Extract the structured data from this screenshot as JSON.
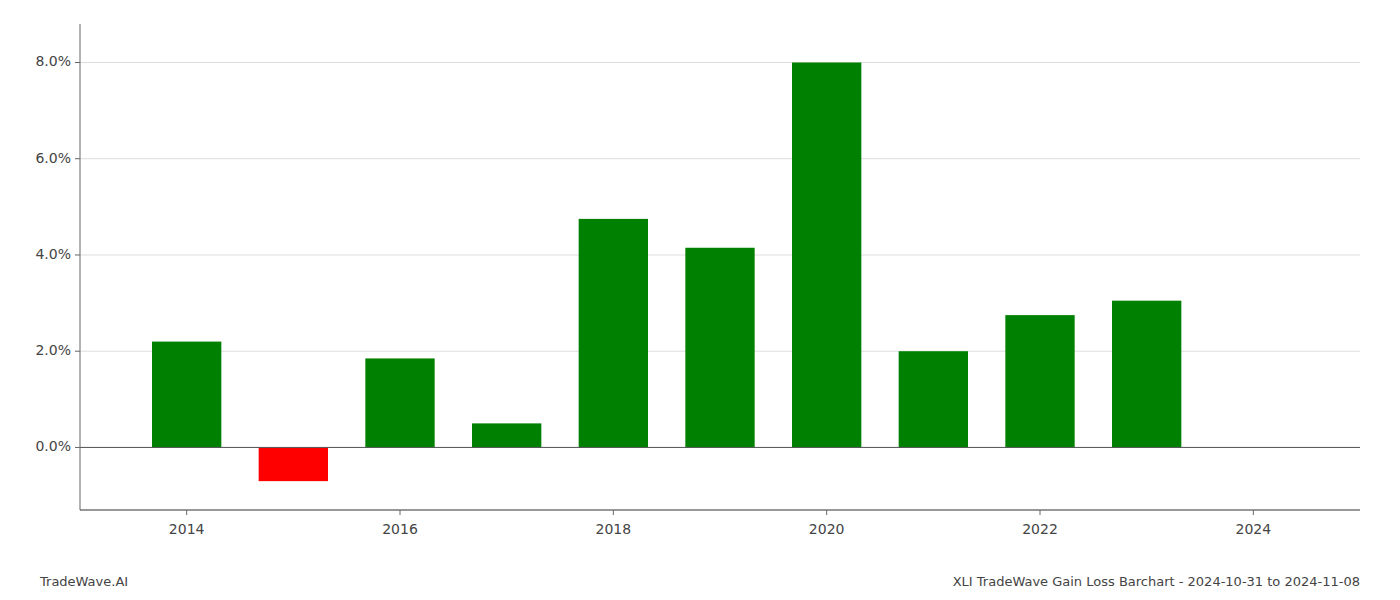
{
  "chart_data": {
    "type": "bar",
    "title": "XLI TradeWave Gain Loss Barchart - 2024-10-31 to 2024-11-08",
    "annotations": [
      "TradeWave.AI"
    ],
    "x": [
      2014,
      2015,
      2016,
      2017,
      2018,
      2019,
      2020,
      2021,
      2022,
      2023
    ],
    "values": [
      0.022,
      -0.007,
      0.0185,
      0.005,
      0.0475,
      0.0415,
      0.08,
      0.02,
      0.0275,
      0.0305
    ],
    "colors": [
      "#008000",
      "#ff0000",
      "#008000",
      "#008000",
      "#008000",
      "#008000",
      "#008000",
      "#008000",
      "#008000",
      "#008000"
    ],
    "xlim": [
      2013.0,
      2025.0
    ],
    "xticks": [
      2014,
      2016,
      2018,
      2020,
      2022,
      2024
    ],
    "ylim": [
      -0.013,
      0.088
    ],
    "yticks": [
      {
        "value": 0.0,
        "label": "0.0%"
      },
      {
        "value": 0.02,
        "label": "2.0%"
      },
      {
        "value": 0.04,
        "label": "4.0%"
      },
      {
        "value": 0.06,
        "label": "6.0%"
      },
      {
        "value": 0.08,
        "label": "8.0%"
      }
    ],
    "grid": true
  }
}
